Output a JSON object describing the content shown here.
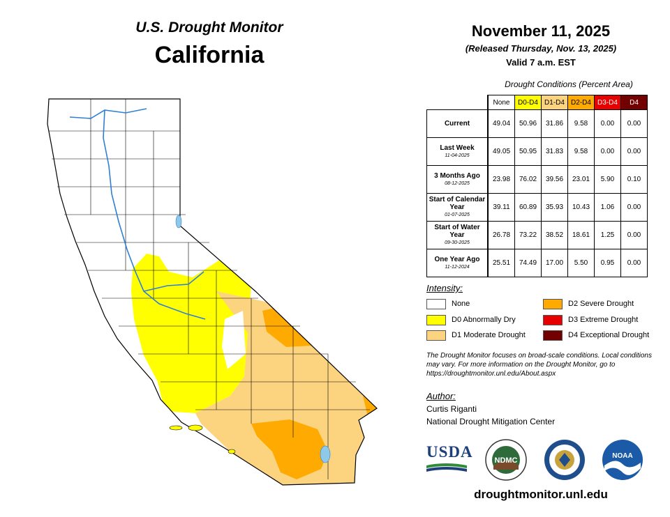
{
  "header": {
    "title": "U.S. Drought Monitor",
    "state": "California"
  },
  "date": "November 11, 2025",
  "released": "(Released Thursday, Nov. 13, 2025)",
  "valid": "Valid 7 a.m. EST",
  "table": {
    "caption": "Drought Conditions (Percent Area)",
    "columns": [
      "None",
      "D0-D4",
      "D1-D4",
      "D2-D4",
      "D3-D4",
      "D4"
    ],
    "column_colors": [
      "#ffffff",
      "#ffff00",
      "#fcd37f",
      "#ffaa00",
      "#e60000",
      "#730000"
    ],
    "rows": [
      {
        "label": "Current",
        "sublabel": "",
        "values": [
          "49.04",
          "50.96",
          "31.86",
          "9.58",
          "0.00",
          "0.00"
        ]
      },
      {
        "label": "Last Week",
        "sublabel": "11-04-2025",
        "values": [
          "49.05",
          "50.95",
          "31.83",
          "9.58",
          "0.00",
          "0.00"
        ]
      },
      {
        "label": "3 Months Ago",
        "sublabel": "08-12-2025",
        "values": [
          "23.98",
          "76.02",
          "39.56",
          "23.01",
          "5.90",
          "0.10"
        ]
      },
      {
        "label": "Start of Calendar Year",
        "sublabel": "01-07-2025",
        "values": [
          "39.11",
          "60.89",
          "35.93",
          "10.43",
          "1.06",
          "0.00"
        ]
      },
      {
        "label": "Start of Water Year",
        "sublabel": "09-30-2025",
        "values": [
          "26.78",
          "73.22",
          "38.52",
          "18.61",
          "1.25",
          "0.00"
        ]
      },
      {
        "label": "One Year Ago",
        "sublabel": "11-12-2024",
        "values": [
          "25.51",
          "74.49",
          "17.00",
          "5.50",
          "0.95",
          "0.00"
        ]
      }
    ]
  },
  "legend": {
    "title": "Intensity:",
    "items": [
      {
        "label": "None",
        "color": "#ffffff"
      },
      {
        "label": "D0 Abnormally Dry",
        "color": "#ffff00"
      },
      {
        "label": "D1 Moderate Drought",
        "color": "#fcd37f"
      },
      {
        "label": "D2 Severe Drought",
        "color": "#ffaa00"
      },
      {
        "label": "D3 Extreme Drought",
        "color": "#e60000"
      },
      {
        "label": "D4 Exceptional Drought",
        "color": "#730000"
      }
    ]
  },
  "note": "The Drought Monitor focuses on broad-scale conditions. Local conditions may vary. For more information on the Drought Monitor, go to https://droughtmonitor.unl.edu/About.aspx",
  "author": {
    "title": "Author:",
    "name": "Curtis Riganti",
    "org": "National Drought Mitigation Center"
  },
  "logos": {
    "usda": "USDA",
    "ndmc": "NDMC",
    "commerce": "commerce-seal",
    "noaa": "NOAA"
  },
  "website": "droughtmonitor.unl.edu"
}
